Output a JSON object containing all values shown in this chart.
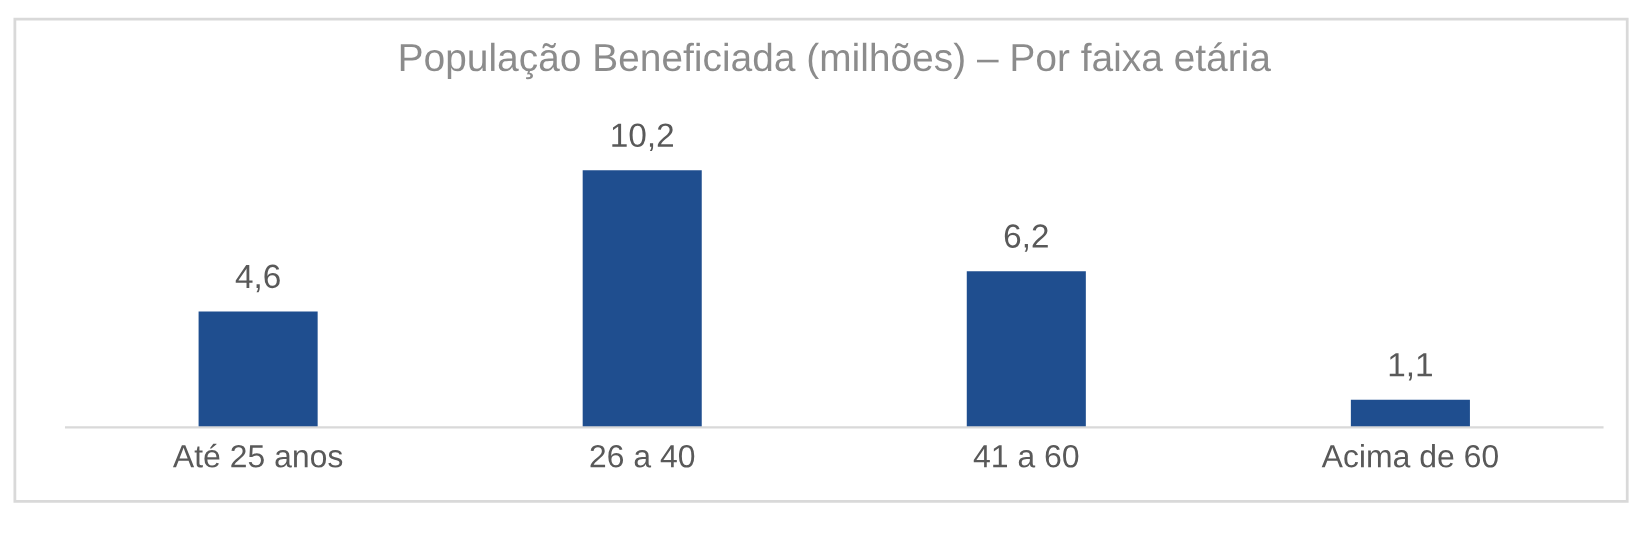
{
  "chart_data": {
    "type": "bar",
    "title": "População Beneficiada (milhões) – Por faixa etária",
    "categories": [
      "Até 25 anos",
      "26 a 40",
      "41 a 60",
      "Acima de 60"
    ],
    "values": [
      4.6,
      10.2,
      6.2,
      1.1
    ],
    "value_labels": [
      "4,6",
      "10,2",
      "6,2",
      "1,1"
    ],
    "color": "#1f4e8f",
    "grid": false,
    "legend": false
  }
}
